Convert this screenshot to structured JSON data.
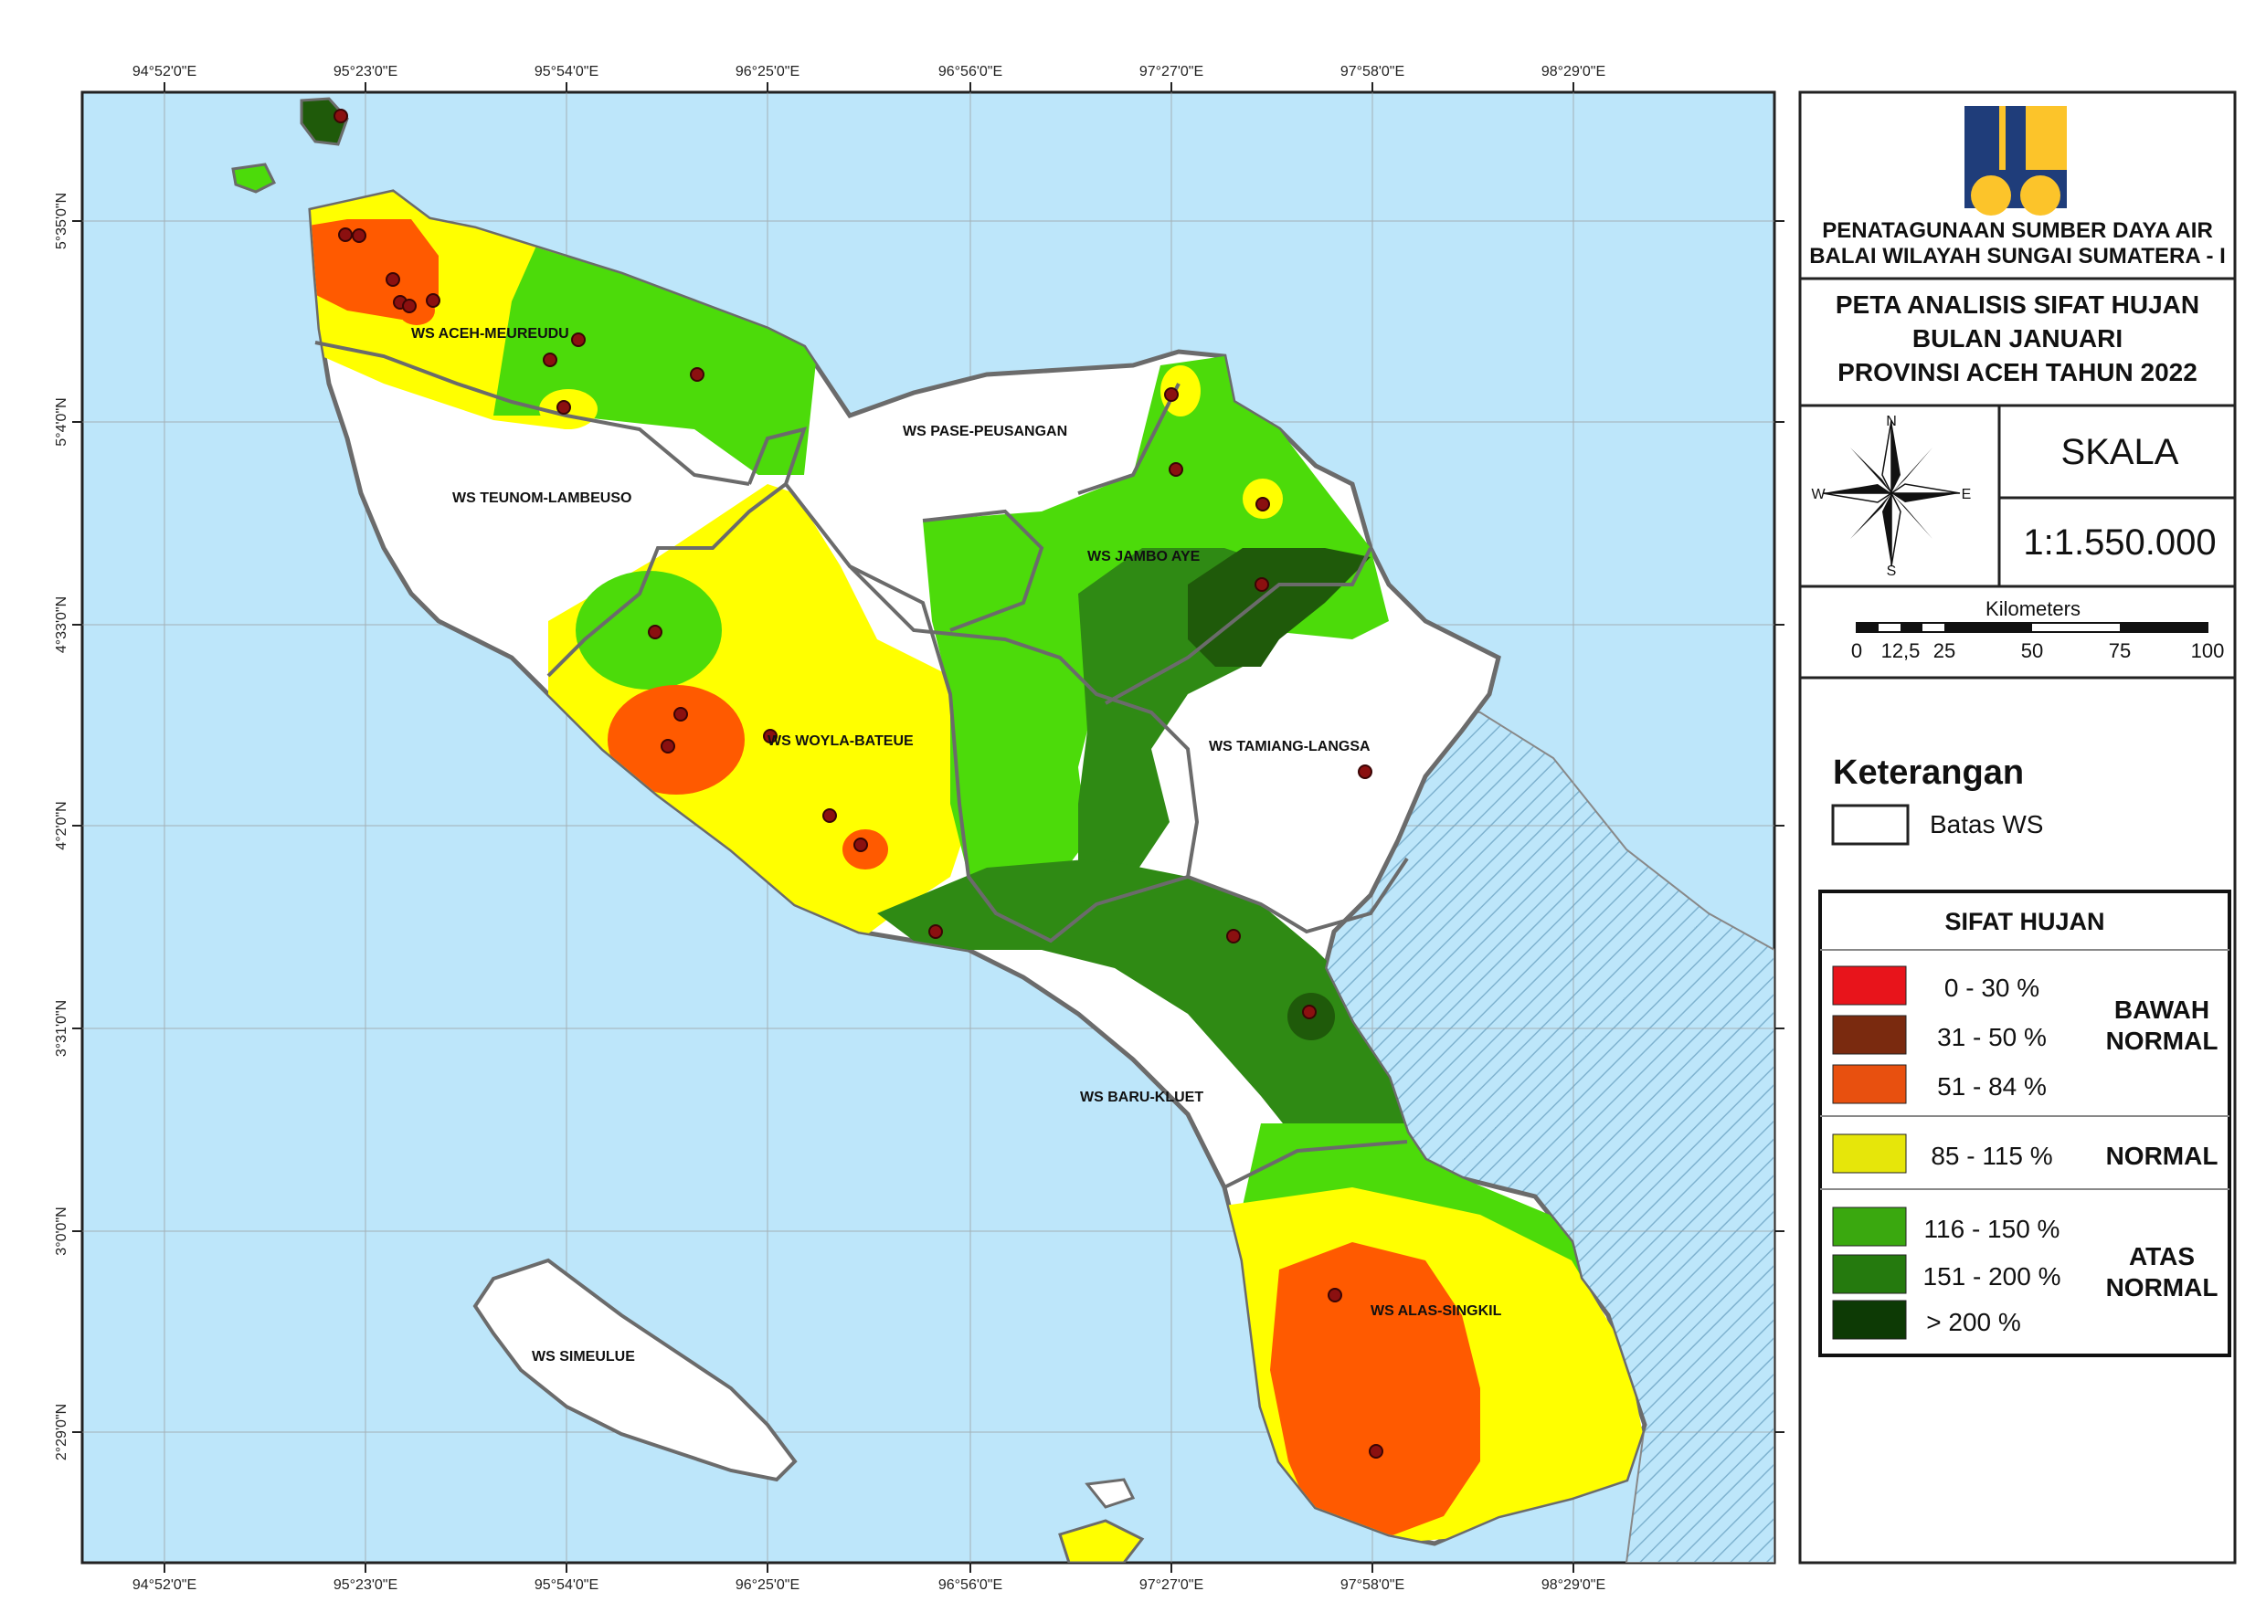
{
  "agency": {
    "line1": "PENATAGUNAAN SUMBER DAYA AIR",
    "line2": "BALAI WILAYAH SUNGAI SUMATERA - I"
  },
  "title": {
    "line1": "PETA ANALISIS SIFAT HUJAN",
    "line2": "BULAN JANUARI",
    "line3": "PROVINSI ACEH TAHUN 2022"
  },
  "compass": {
    "n": "N",
    "s": "S",
    "e": "E",
    "w": "W"
  },
  "scale": {
    "label": "SKALA",
    "ratio": "1:1.550.000",
    "bar_title": "Kilometers",
    "ticks": [
      "0",
      "12,5",
      "25",
      "50",
      "75",
      "100"
    ]
  },
  "legend": {
    "title": "Keterangan",
    "boundary_label": "Batas WS",
    "table_title": "SIFAT HUJAN",
    "classes": [
      {
        "range": "0  -  30 %",
        "color": "#e8141b"
      },
      {
        "range": "31  -  50 %",
        "color": "#7a2a0f"
      },
      {
        "range": "51  -  84 %",
        "color": "#e8500f"
      },
      {
        "range": "85  -  115 %",
        "color": "#e6e60a"
      },
      {
        "range": "116  -  150 %",
        "color": "#3aa80f"
      },
      {
        "range": "151  -  200 %",
        "color": "#257a0e"
      },
      {
        "range": ">  200 %",
        "color": "#0d3a05"
      }
    ],
    "groups": {
      "below_1": "BAWAH",
      "below_2": "NORMAL",
      "normal": "NORMAL",
      "above_1": "ATAS",
      "above_2": "NORMAL"
    }
  },
  "map_colors": {
    "sea": "#bde6fa",
    "below_normal": "#ff5a00",
    "normal": "#ffff00",
    "above_normal": "#4cdb0a",
    "above_normal_dark": "#2f8a14",
    "very_high": "#1f5a0a",
    "boundary": "#6b6b6b"
  },
  "longitudes": [
    "94°52'0\"E",
    "95°23'0\"E",
    "95°54'0\"E",
    "96°25'0\"E",
    "96°56'0\"E",
    "97°27'0\"E",
    "97°58'0\"E",
    "98°29'0\"E"
  ],
  "latitudes": [
    "5°35'0\"N",
    "5°4'0\"N",
    "4°33'0\"N",
    "4°2'0\"N",
    "3°31'0\"N",
    "3°0'0\"N",
    "2°29'0\"N"
  ],
  "ws_labels": {
    "aceh_meureudu": "WS ACEH-MEUREUDU",
    "pase_peusangan": "WS PASE-PEUSANGAN",
    "teunom_lambeuso": "WS TEUNOM-LAMBEUSO",
    "jambo_aye": "WS JAMBO AYE",
    "woyla_bateue": "WS WOYLA-BATEUE",
    "tamiang_langsa": "WS TAMIANG-LANGSA",
    "baru_kluet": "WS BARU-KLUET",
    "alas_singkil": "WS ALAS-SINGKIL",
    "simeulue": "WS SIMEULUE"
  }
}
